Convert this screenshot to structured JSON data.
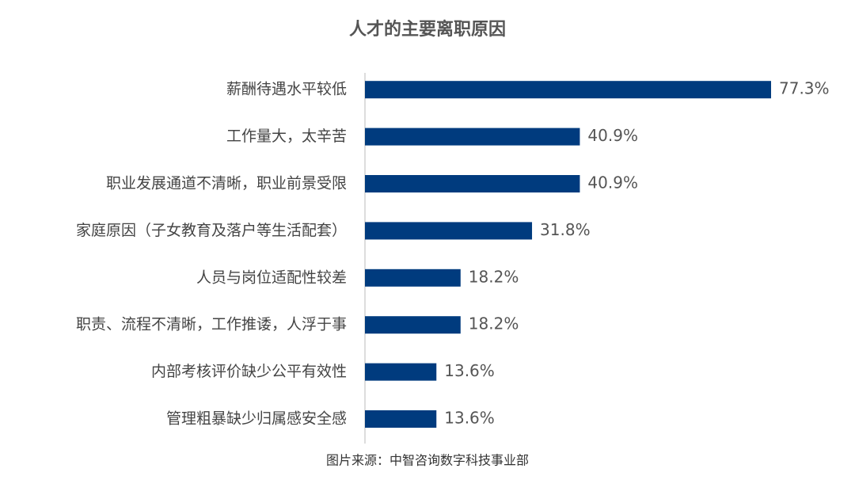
{
  "chart_data": {
    "type": "bar",
    "orientation": "horizontal",
    "title": "人才的主要离职原因",
    "categories": [
      "薪酬待遇水平较低",
      "工作量大，太辛苦",
      "职业发展通道不清晰，职业前景受限",
      "家庭原因（子女教育及落户等生活配套）",
      "人员与岗位适配性较差",
      "职责、流程不清晰，工作推诿，人浮于事",
      "内部考核评价缺少公平有效性",
      "管理粗暴缺少归属感安全感"
    ],
    "values": [
      77.3,
      40.9,
      40.9,
      31.8,
      18.2,
      18.2,
      13.6,
      13.6
    ],
    "value_labels": [
      "77.3%",
      "40.9%",
      "40.9%",
      "31.8%",
      "18.2%",
      "18.2%",
      "13.6%",
      "13.6%"
    ],
    "color": "#003b7e",
    "source": "图片来源：中智咨询数字科技事业部"
  }
}
